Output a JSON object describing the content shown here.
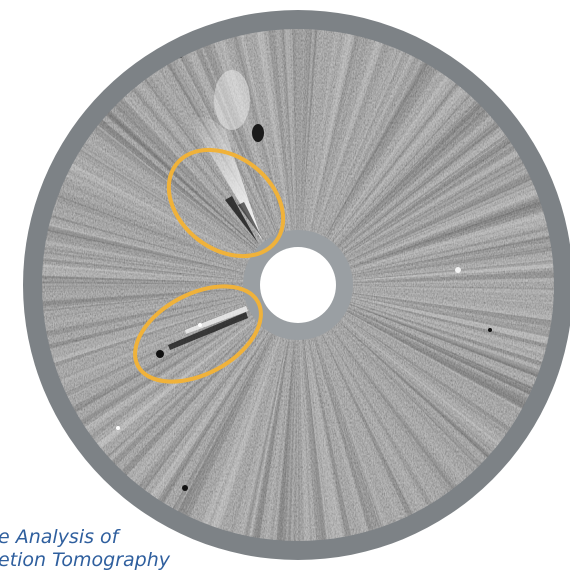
{
  "image": {
    "caption_lines": [
      "e Analysis of",
      "etion Tomography"
    ],
    "colors": {
      "background": "#ffffff",
      "occulter_ring": "#7d8286",
      "inner_occulter": "#9a9fa3",
      "sun_disk": "#ffffff",
      "field_mid_gray": "#8d8d8d",
      "highlight_circle": "#f0b23a",
      "caption_text": "#2f5f9e"
    }
  }
}
